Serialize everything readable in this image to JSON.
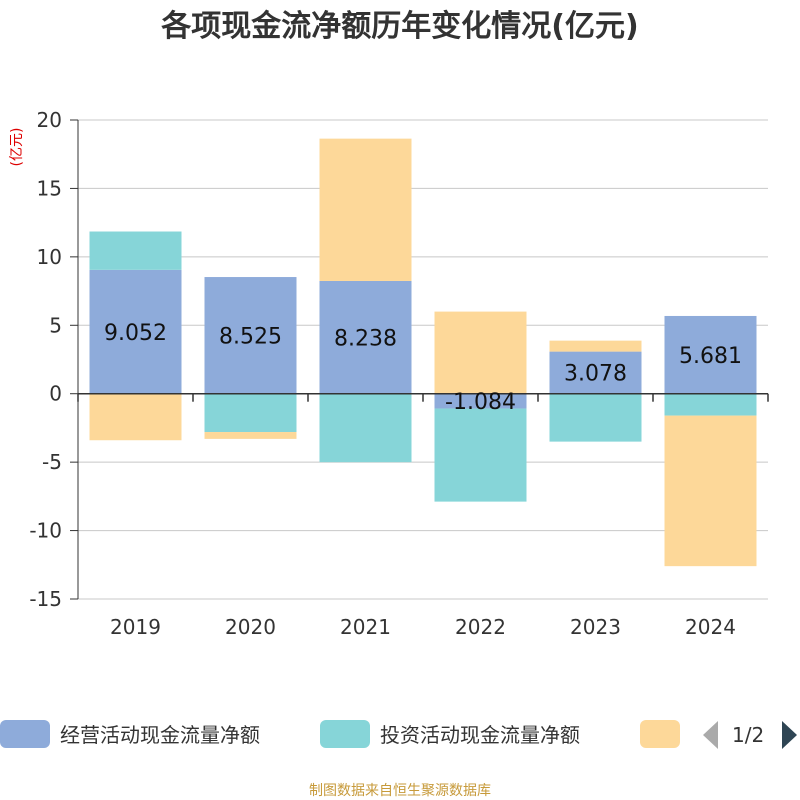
{
  "chart_data": {
    "type": "bar",
    "stacked": true,
    "title": "各项现金流净额历年变化情况(亿元)",
    "ylabel": "(亿元)",
    "ylim": [
      -15,
      20
    ],
    "yticks": [
      20,
      15,
      10,
      5,
      0,
      -5,
      -10,
      -15
    ],
    "categories": [
      "2019",
      "2020",
      "2021",
      "2022",
      "2023",
      "2024"
    ],
    "series": [
      {
        "name": "经营活动现金流量净额",
        "color": "#8eabda",
        "values": [
          9.052,
          8.525,
          8.238,
          -1.084,
          3.078,
          5.681
        ]
      },
      {
        "name": "投资活动现金流量净额",
        "color": "#86d5d8",
        "values": [
          2.8,
          -2.8,
          -5.0,
          -6.8,
          -3.5,
          -1.6
        ]
      },
      {
        "name": "",
        "color": "#fdd899",
        "values": [
          -3.4,
          -0.5,
          10.4,
          6.0,
          0.8,
          -11.0
        ]
      }
    ],
    "data_labels": [
      "9.052",
      "8.525",
      "8.238",
      "-1.084",
      "3.078",
      "5.681"
    ],
    "legend": {
      "page": "1/2",
      "position": "bottom"
    }
  },
  "source_text": "制图数据来自恒生聚源数据库"
}
